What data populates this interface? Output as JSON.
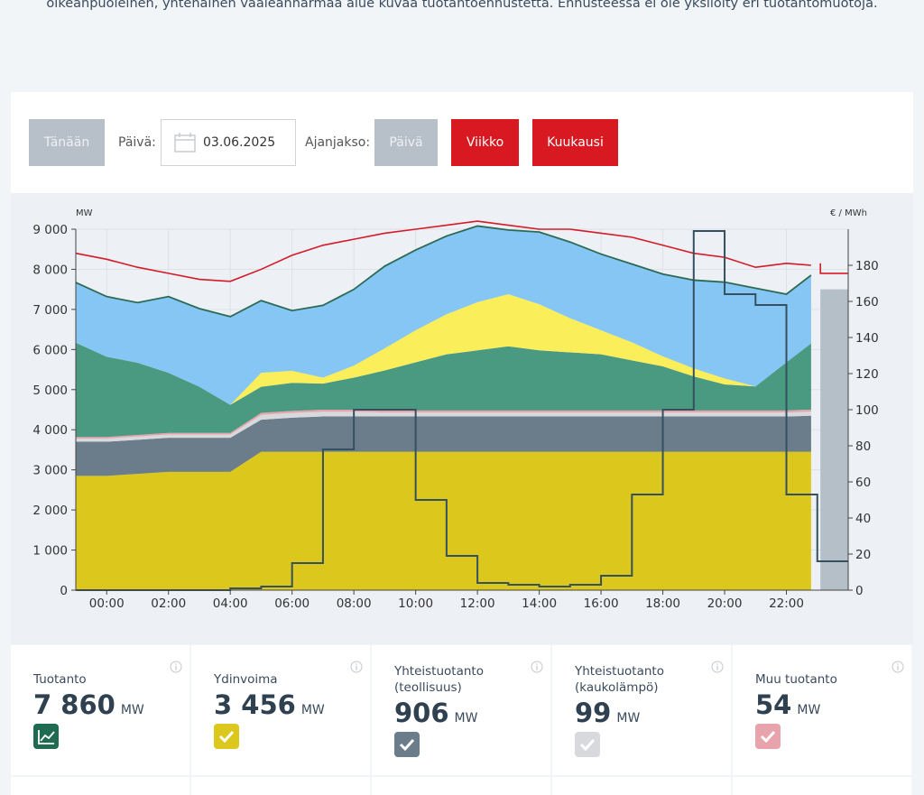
{
  "intro_text": "oikeanpuoleinen, yhtenäinen vaaleanharmaa alue kuvaa tuotantoennustetta. Ennusteessa ei ole yksilöity eri tuotantomuotoja.",
  "controls": {
    "today_label": "Tänään",
    "date_label": "Päivä:",
    "date_value": "03.06.2025",
    "period_label": "Ajanjakso:",
    "day_label": "Päivä",
    "week_label": "Viikko",
    "month_label": "Kuukausi"
  },
  "colors": {
    "nuclear": "#dcc81c",
    "industry_chp": "#6b7d8b",
    "district_chp": "#d7d9dc",
    "other": "#e8a3ad",
    "hydro": "#4a9a82",
    "solar": "#faee5a",
    "wind": "#86c6f4",
    "forecast": "#b4bfc8",
    "consumption": "#d51a28",
    "production_line": "#2d6a55",
    "price": "#35505e",
    "accent": "#d81921"
  },
  "chart_data": {
    "type": "area",
    "xlabel": "",
    "ylabel": "MW",
    "y2label": "€ / MWh",
    "x_ticks": [
      "00:00",
      "02:00",
      "04:00",
      "06:00",
      "08:00",
      "10:00",
      "12:00",
      "14:00",
      "16:00",
      "18:00",
      "20:00",
      "22:00"
    ],
    "x_range_hours": [
      -1,
      24
    ],
    "ylim": [
      0,
      9000
    ],
    "y_ticks": [
      "0",
      "1 000",
      "2 000",
      "3 000",
      "4 000",
      "5 000",
      "6 000",
      "7 000",
      "8 000",
      "9 000"
    ],
    "y2lim": [
      0,
      200
    ],
    "y2_ticks": [
      "0",
      "20",
      "40",
      "60",
      "80",
      "100",
      "120",
      "140",
      "160",
      "180"
    ],
    "hours": [
      -1,
      0,
      1,
      2,
      3,
      4,
      5,
      6,
      7,
      8,
      9,
      10,
      11,
      12,
      13,
      14,
      15,
      16,
      17,
      18,
      19,
      20,
      21,
      22,
      22.8
    ],
    "series": [
      {
        "key": "nuclear",
        "values": [
          2850,
          2850,
          2900,
          2950,
          2950,
          2950,
          3450,
          3450,
          3450,
          3450,
          3450,
          3450,
          3450,
          3450,
          3450,
          3450,
          3450,
          3450,
          3450,
          3450,
          3450,
          3450,
          3450,
          3450,
          3450
        ]
      },
      {
        "key": "industry_chp",
        "values": [
          850,
          850,
          850,
          850,
          850,
          850,
          800,
          850,
          880,
          880,
          880,
          880,
          880,
          880,
          880,
          880,
          880,
          880,
          880,
          880,
          880,
          880,
          880,
          880,
          900
        ]
      },
      {
        "key": "district_chp",
        "values": [
          80,
          80,
          80,
          80,
          80,
          80,
          120,
          120,
          120,
          120,
          100,
          100,
          100,
          100,
          100,
          100,
          100,
          100,
          100,
          100,
          100,
          100,
          100,
          100,
          100
        ]
      },
      {
        "key": "other",
        "values": [
          40,
          40,
          40,
          40,
          40,
          40,
          50,
          50,
          50,
          50,
          50,
          50,
          50,
          50,
          50,
          50,
          50,
          50,
          50,
          50,
          50,
          50,
          50,
          50,
          54
        ]
      },
      {
        "key": "hydro",
        "values": [
          2350,
          2000,
          1800,
          1500,
          1150,
          700,
          650,
          700,
          650,
          800,
          1000,
          1200,
          1400,
          1500,
          1600,
          1500,
          1450,
          1400,
          1250,
          1100,
          850,
          650,
          600,
          1200,
          1650
        ]
      },
      {
        "key": "solar",
        "values": [
          0,
          0,
          0,
          0,
          0,
          0,
          350,
          300,
          150,
          300,
          550,
          800,
          1000,
          1200,
          1300,
          1150,
          850,
          600,
          450,
          250,
          200,
          150,
          0,
          0,
          0
        ]
      },
      {
        "key": "wind",
        "values": [
          1500,
          1500,
          1500,
          1900,
          1950,
          2200,
          1800,
          1500,
          1800,
          1900,
          2050,
          2000,
          1950,
          1900,
          1600,
          1800,
          1900,
          1900,
          1950,
          2050,
          2200,
          2400,
          2450,
          1700,
          1700
        ]
      }
    ],
    "consumption": {
      "hours": [
        -1,
        0,
        1,
        2,
        3,
        4,
        5,
        6,
        7,
        8,
        9,
        10,
        11,
        12,
        13,
        14,
        15,
        16,
        17,
        18,
        19,
        20,
        21,
        22,
        22.8
      ],
      "values": [
        8400,
        8250,
        8050,
        7900,
        7750,
        7700,
        8000,
        8350,
        8600,
        8750,
        8900,
        9000,
        9100,
        9200,
        9100,
        9000,
        9000,
        8900,
        8800,
        8600,
        8400,
        8300,
        8050,
        8150,
        8100
      ]
    },
    "consumption_forecast": {
      "hours": [
        23.1,
        24
      ],
      "values": [
        7900,
        7900
      ]
    },
    "forecast_area": {
      "hours": [
        23.1,
        24
      ],
      "values": [
        7500,
        7500
      ]
    },
    "price": {
      "start_hours": [
        -1,
        0,
        1,
        2,
        3,
        4,
        5,
        6,
        7,
        8,
        9,
        10,
        11,
        12,
        13,
        14,
        15,
        16,
        17,
        18,
        19,
        20,
        21,
        22,
        23
      ],
      "values": [
        0,
        0,
        0,
        0,
        0,
        1,
        2,
        15,
        78,
        100,
        100,
        50,
        19,
        4,
        3,
        2,
        3,
        8,
        53,
        100,
        199,
        164,
        158,
        53,
        16
      ]
    }
  },
  "cards": [
    {
      "title": "Tuotanto",
      "value": "7 860",
      "unit": "MW"
    },
    {
      "title": "Ydinvoima",
      "value": "3 456",
      "unit": "MW"
    },
    {
      "title": "Yhteistuotanto (teollisuus)",
      "value": "906",
      "unit": "MW"
    },
    {
      "title": "Yhteistuotanto (kaukolämpö)",
      "value": "99",
      "unit": "MW"
    },
    {
      "title": "Muu tuotanto",
      "value": "54",
      "unit": "MW"
    }
  ]
}
